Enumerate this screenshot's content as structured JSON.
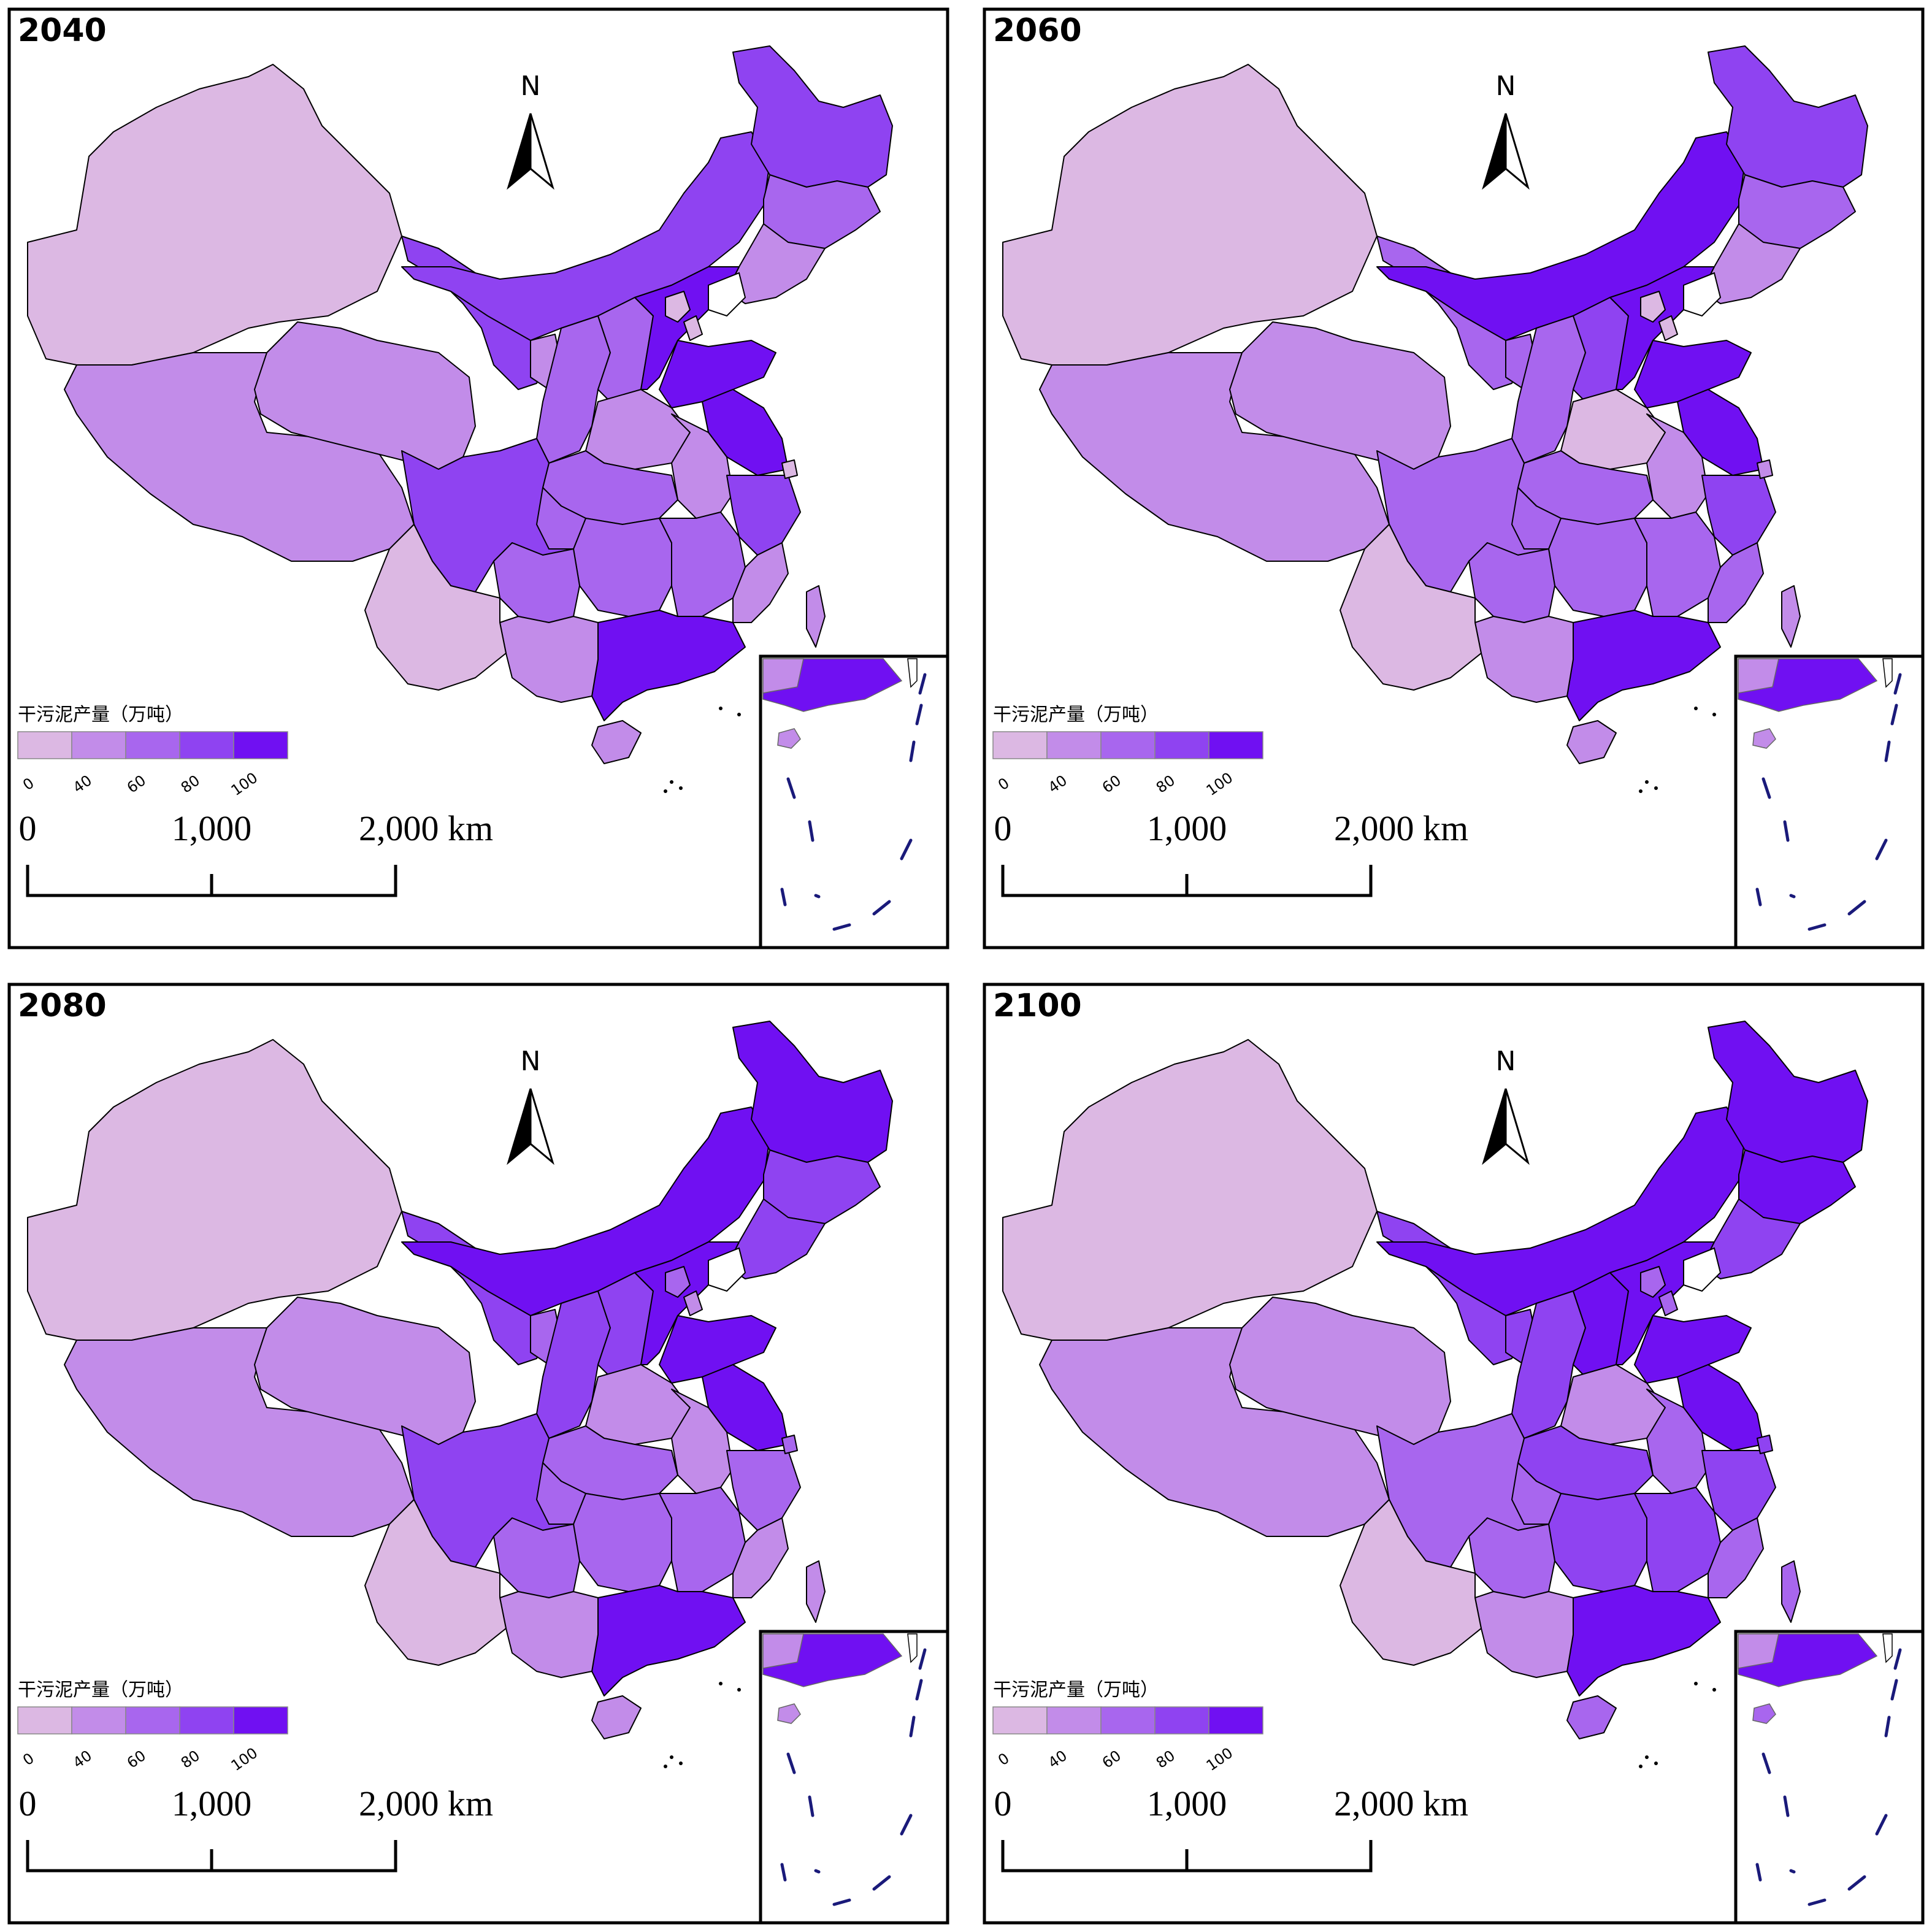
{
  "panels": [
    {
      "year": "2040",
      "fills": [
        0,
        1,
        1,
        3,
        3,
        3,
        2,
        1,
        1,
        2,
        2,
        4,
        4,
        1,
        4,
        1,
        3,
        2,
        2,
        2,
        4,
        1,
        3,
        2,
        2,
        1,
        0,
        1,
        0,
        0,
        0,
        1
      ]
    },
    {
      "year": "2060",
      "fills": [
        0,
        1,
        1,
        2,
        4,
        3,
        2,
        1,
        2,
        2,
        3,
        4,
        4,
        0,
        4,
        1,
        3,
        2,
        2,
        2,
        4,
        2,
        2,
        2,
        2,
        1,
        0,
        1,
        0,
        0,
        1,
        1
      ]
    },
    {
      "year": "2080",
      "fills": [
        0,
        1,
        1,
        3,
        4,
        4,
        3,
        3,
        2,
        3,
        3,
        4,
        4,
        1,
        4,
        1,
        2,
        2,
        2,
        2,
        4,
        1,
        3,
        2,
        2,
        1,
        0,
        1,
        2,
        1,
        2,
        1
      ]
    },
    {
      "year": "2100",
      "fills": [
        0,
        1,
        1,
        3,
        4,
        4,
        4,
        3,
        3,
        3,
        4,
        4,
        4,
        1,
        4,
        2,
        3,
        3,
        3,
        3,
        4,
        2,
        2,
        2,
        2,
        1,
        0,
        2,
        2,
        2,
        3,
        2
      ]
    }
  ],
  "colors": [
    "#dcb8e3",
    "#c28ce9",
    "#a866ee",
    "#8f43f1",
    "#7010f2"
  ],
  "legend": {
    "title": "干污泥产量（万吨）",
    "ticks": [
      "0",
      "40",
      "60",
      "80",
      "100"
    ]
  },
  "north_label": "N",
  "scale_bar": {
    "labels": [
      "0",
      "1,000",
      "2,000 km"
    ]
  }
}
